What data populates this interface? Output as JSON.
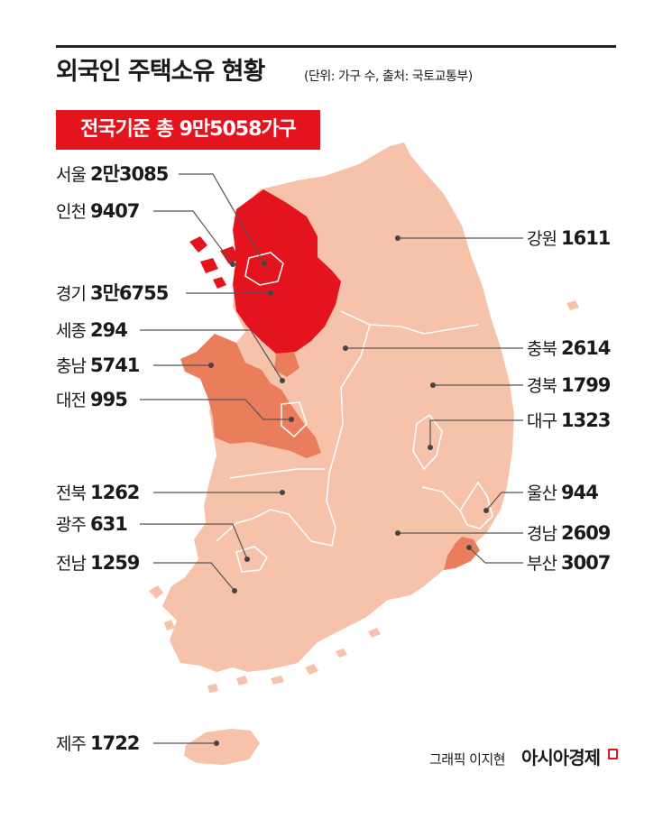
{
  "title": "외국인 주택소유 현황",
  "subtitle": "(단위: 가구 수, 출처: 국토교통부)",
  "banner": "전국기준 총 9만5058가구",
  "colors": {
    "accent": "#e3141d",
    "high": "#e3141d",
    "mid": "#ea7d5c",
    "low": "#f6c2aa",
    "line": "#555555"
  },
  "regions": [
    {
      "name": "서울",
      "value": "2만3085",
      "tier": "high"
    },
    {
      "name": "인천",
      "value": "9407",
      "tier": "high"
    },
    {
      "name": "경기",
      "value": "3만6755",
      "tier": "high"
    },
    {
      "name": "세종",
      "value": "294",
      "tier": "mid"
    },
    {
      "name": "충남",
      "value": "5741",
      "tier": "mid"
    },
    {
      "name": "대전",
      "value": "995",
      "tier": "mid"
    },
    {
      "name": "전북",
      "value": "1262",
      "tier": "low"
    },
    {
      "name": "광주",
      "value": "631",
      "tier": "low"
    },
    {
      "name": "전남",
      "value": "1259",
      "tier": "low"
    },
    {
      "name": "제주",
      "value": "1722",
      "tier": "low"
    },
    {
      "name": "강원",
      "value": "1611",
      "tier": "low"
    },
    {
      "name": "충북",
      "value": "2614",
      "tier": "low"
    },
    {
      "name": "경북",
      "value": "1799",
      "tier": "low"
    },
    {
      "name": "대구",
      "value": "1323",
      "tier": "low"
    },
    {
      "name": "울산",
      "value": "944",
      "tier": "low"
    },
    {
      "name": "경남",
      "value": "2609",
      "tier": "low"
    },
    {
      "name": "부산",
      "value": "3007",
      "tier": "mid"
    }
  ],
  "footer": {
    "credit": "그래픽 이지현",
    "brand": "아시아경제"
  }
}
